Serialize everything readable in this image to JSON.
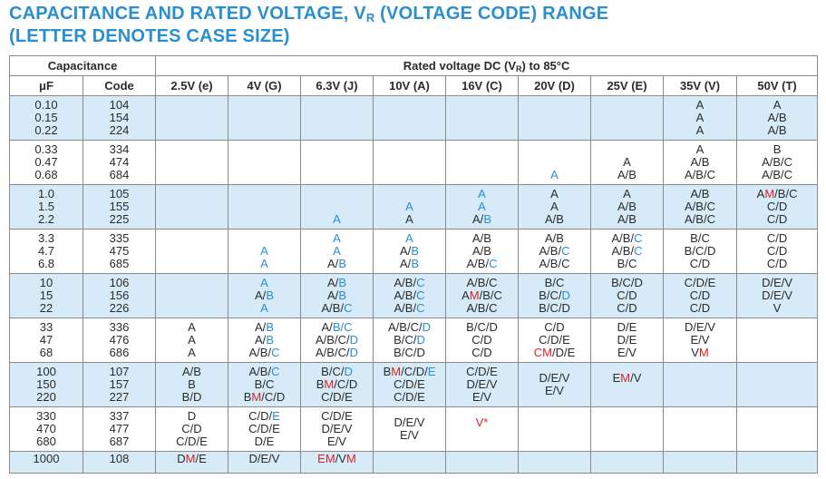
{
  "title": {
    "line1_prefix": "CAPACITANCE AND RATED VOLTAGE, V",
    "line1_sub": "R",
    "line1_suffix": " (VOLTAGE CODE) RANGE",
    "line2": "(LETTER DENOTES CASE SIZE)"
  },
  "header": {
    "capacitance": "Capacitance",
    "rated_prefix": "Rated voltage DC (V",
    "rated_sub": "R",
    "rated_suffix": ") to 85°C",
    "uf": "μF",
    "code": "Code",
    "voltages": [
      "2.5V (e)",
      "4V (G)",
      "6.3V (J)",
      "10V (A)",
      "16V (C)",
      "20V (D)",
      "25V (E)",
      "35V (V)",
      "50V (T)"
    ]
  },
  "color_key": {
    "blue": "#2a8fd0",
    "red": "#d8232a",
    "shade": "#d6ebf7"
  },
  "rows": [
    {
      "uf": "0.10\n0.15\n0.22",
      "code": "104\n154\n224",
      "cells": [
        "",
        "",
        "",
        "",
        "",
        "",
        "",
        "A\nA\nA",
        "A\nA/B\nA/B"
      ]
    },
    {
      "uf": "0.33\n0.47\n0.68",
      "code": "334\n474\n684",
      "cells": [
        "",
        "",
        "",
        "",
        "",
        "\n\n[A]",
        "\nA\nA/B",
        "A\nA/B\nA/B/C",
        "B\nA/B/C\nA/B/C"
      ]
    },
    {
      "uf": "1.0\n1.5\n2.2",
      "code": "105\n155\n225",
      "cells": [
        "",
        "",
        "\n\n[A]",
        "\n[A]\nA",
        "[A]\n[A]\nA/[B]",
        "A\nA\nA/B",
        "A\nA/B\nA/B",
        "A/B\nA/B/C\nA/B/C",
        "A{M}/B/C\nC/D\nC/D"
      ]
    },
    {
      "uf": "3.3\n4.7\n6.8",
      "code": "335\n475\n685",
      "cells": [
        "",
        "\n[A]\n[A]",
        "[A]\n[A]\nA/[B]",
        "[A]\nA/[B]\nA/[B]",
        "A/B\nA/B\nA/B/[C]",
        "A/B\nA/B/[C]\nA/B/C",
        "A/B/[C]\nA/B/[C]\nB/C",
        "B/C\nB/C/D\nC/D",
        "C/D\nC/D\nC/D"
      ]
    },
    {
      "uf": "10\n15\n22",
      "code": "106\n156\n226",
      "cells": [
        "",
        "[A]\nA/[B]\n[A]",
        "A/[B]\nA/[B]\nA/B/[C]",
        "A/B/[C]\nA/B/[C]\nA/B/[C]",
        "A/B/C\nA{M}/B/C\nA/B/C",
        "B/C\nB/C/[D]\nB/C/D",
        "B/C/D\nC/D\nC/D",
        "C/D/E\nC/D\nC/D",
        "D/E/V\nD/E/V\nV"
      ]
    },
    {
      "uf": "33\n47\n68",
      "code": "336\n476\n686",
      "cells": [
        "A\nA\nA",
        "A/[B]\nA/[B]\nA/B/[C]",
        "A/[B/C]\nA/B/C/[D]\nA/B/C/[D]",
        "A/B/C/[D]\nB/C/[D]\nB/C/D",
        "B/C/D\nC/D\nC/D",
        "C/D\nC/D/E\n{C}{M}/D/E",
        "D/E\nD/E\nE/V",
        "D/E/V\nE/V\nV{M}",
        ""
      ]
    },
    {
      "uf": "100\n150\n220",
      "code": "107\n157\n227",
      "cells": [
        "A/B\nB\nB/D",
        "A/B/[C]\nB/C\nB{M}/C/D",
        "B/C/[D]\nB{M}/C/D\nC/D/E",
        "B{M}/C/D/[E]\nC/D/E\nC/D/E",
        "C/D/E\nD/E/V\nE/V",
        "D/E/V\nE/V\n",
        "E{M}/V\n\n",
        "",
        ""
      ]
    },
    {
      "uf": "330\n470\n680",
      "code": "337\n477\n687",
      "cells": [
        "D\nC/D\nC/D/E",
        "C/D/[E]\nC/D/E\nD/E",
        "C/D/E\nD/E/V\nE/V",
        "D/E/V\nE/V\n",
        "{V*}\n\n",
        "",
        "",
        "",
        ""
      ]
    },
    {
      "uf": "1000",
      "code": "108",
      "cells": [
        "D{M}/E",
        "D/E/V",
        "{E}{M}/V{M}",
        "",
        "",
        "",
        "",
        "",
        ""
      ]
    }
  ]
}
